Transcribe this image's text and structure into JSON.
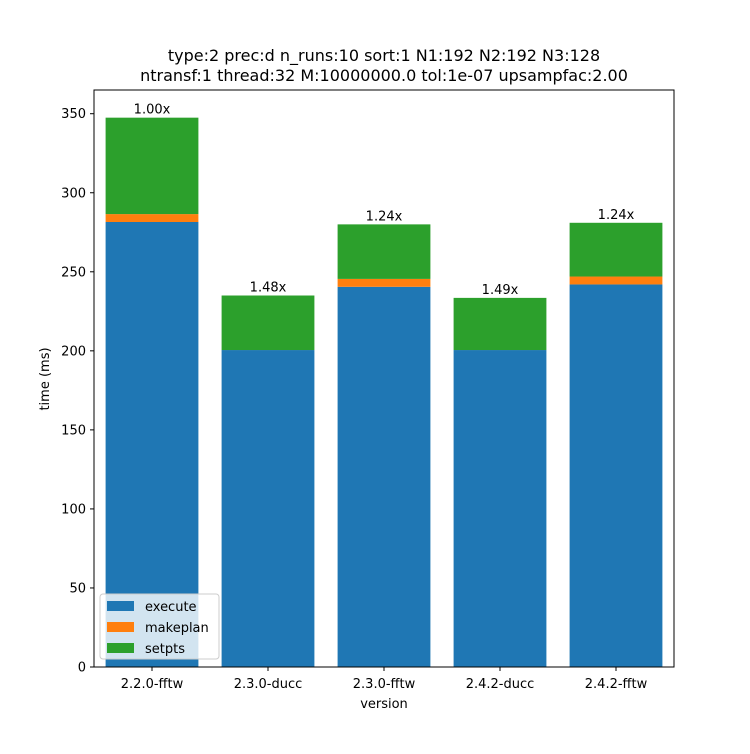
{
  "chart_data": {
    "type": "bar",
    "stacked": true,
    "title": "type:2 prec:d n_runs:10 sort:1 N1:192 N2:192 N3:128\nntransf:1 thread:32 M:10000000.0 tol:1e-07 upsampfac:2.00",
    "title_lines": [
      "type:2 prec:d n_runs:10 sort:1 N1:192 N2:192 N3:128",
      "ntransf:1 thread:32 M:10000000.0 tol:1e-07 upsampfac:2.00"
    ],
    "xlabel": "version",
    "ylabel": "time (ms)",
    "categories": [
      "2.2.0-fftw",
      "2.3.0-ducc",
      "2.3.0-fftw",
      "2.4.2-ducc",
      "2.4.2-fftw"
    ],
    "series": [
      {
        "name": "execute",
        "color": "#1f77b4",
        "values": [
          281.5,
          200.5,
          240.5,
          200.5,
          242.0
        ]
      },
      {
        "name": "makeplan",
        "color": "#ff7f0e",
        "values": [
          5.0,
          0.0,
          5.0,
          0.0,
          5.0
        ]
      },
      {
        "name": "setpts",
        "color": "#2ca02c",
        "values": [
          61.0,
          34.5,
          34.5,
          33.0,
          34.0
        ]
      }
    ],
    "bar_labels": [
      "1.00x",
      "1.48x",
      "1.24x",
      "1.49x",
      "1.24x"
    ],
    "ylim": [
      0,
      365
    ],
    "yticks": [
      0,
      50,
      100,
      150,
      200,
      250,
      300,
      350
    ],
    "grid": false,
    "legend_position": "lower-left"
  }
}
